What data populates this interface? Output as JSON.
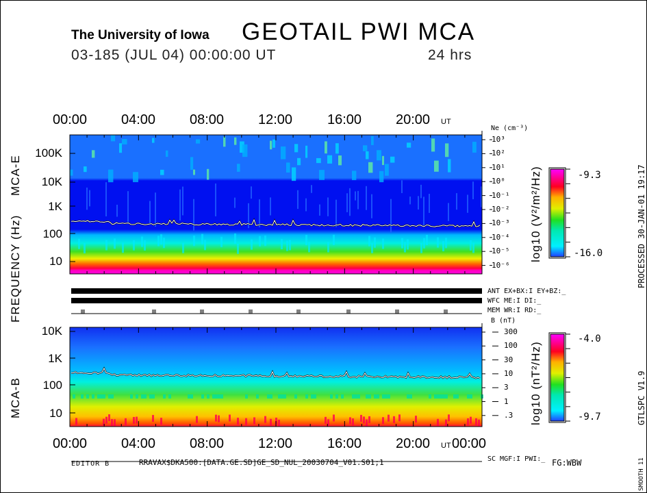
{
  "header": {
    "institution": "The University of Iowa",
    "title": "GEOTAIL  PWI  MCA",
    "date_line": "03-185  (JUL 04)  00:00:00  UT",
    "duration": "24  hrs"
  },
  "chart_data": [
    {
      "type": "heatmap",
      "name": "MCA-E",
      "ylabel": "MCA-E",
      "xlabel": "UT",
      "x_ticks": [
        "00:00",
        "04:00",
        "08:00",
        "12:00",
        "16:00",
        "20:00"
      ],
      "x_unit": "UT",
      "y_ticks": [
        "100K",
        "10K",
        "1K",
        "100",
        "10"
      ],
      "y_scale": "log",
      "right_axis_label": "Ne (cm⁻³)",
      "right_axis_ticks": [
        "10³",
        "10²",
        "10¹",
        "10⁰",
        "10⁻¹",
        "10⁻²",
        "10⁻³",
        "10⁻⁴",
        "10⁻⁵",
        "10⁻⁶"
      ],
      "colorbar": {
        "label": "log10 (V²/m²/Hz)",
        "max": "-9.3",
        "min": "-16.0"
      },
      "trace_frequency_hz": 200
    },
    {
      "type": "heatmap",
      "name": "MCA-B",
      "ylabel": "MCA-B",
      "xlabel": "UT",
      "x_ticks": [
        "00:00",
        "04:00",
        "08:00",
        "12:00",
        "16:00",
        "20:00",
        "00:00"
      ],
      "x_unit": "UT",
      "y_ticks": [
        "10K",
        "1K",
        "100",
        "10"
      ],
      "y_scale": "log",
      "right_axis_label": "B (nT)",
      "right_axis_ticks": [
        "300",
        "100",
        "30",
        "10",
        "3",
        "1",
        ".3"
      ],
      "colorbar": {
        "label": "log10 (nT²/Hz)",
        "max": "-4.0",
        "min": "-9.7"
      },
      "trace_frequency_hz": 200
    }
  ],
  "shared_ylabel": "FREQUENCY (Hz)",
  "status": {
    "ant": "ANT EX+BX:I  EY+BZ:_",
    "wfc": "WFC ME:I      DI:_",
    "mem": "MEM WR:I      RD:_",
    "sc": "SC MGF:I    PWI:_"
  },
  "footer": {
    "editor": "EDITOR B",
    "file": "RRAVAX$DKA500:[DATA.GE.SD]GE_SD_NUL_20030704_V01.S01;1",
    "fg": "FG:WBW"
  },
  "side": {
    "processed": "PROCESSED 30-JAN-01  19:17",
    "version": "GTLSPC   V1.9",
    "smooth": "SMOOTH 11"
  }
}
